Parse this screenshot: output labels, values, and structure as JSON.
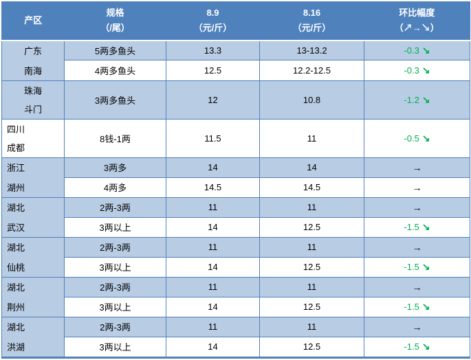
{
  "colors": {
    "header_bg": "#4f81bd",
    "row_blue": "#b8cce4",
    "row_white": "#ffffff",
    "border_blue": "#4f81bd",
    "header_text": "#ffffff",
    "body_text": "#000000",
    "down_green": "#00b050",
    "flat_black": "#000000"
  },
  "icons": {
    "up_arrow": "↗",
    "flat_arrow": "→",
    "down_arrow": "↘"
  },
  "header": {
    "region": "产区",
    "spec_line1": "规格",
    "spec_line2": "（/尾）",
    "date1_line1": "8.9",
    "date1_line2": "（元/斤）",
    "date2_line1": "8.16",
    "date2_line2": "（元/斤）",
    "change_line1": "环比幅度",
    "change_line2": "（↗→↘）"
  },
  "groups": [
    {
      "region_lines": [
        "广东",
        "南海"
      ],
      "region_align": "center",
      "region_bg": "blue",
      "tall": false,
      "rows": [
        {
          "spec": "5两多鱼头",
          "p1": "13.3",
          "p2": "13-13.2",
          "change": "-0.3",
          "trend": "down",
          "bg": "blue"
        },
        {
          "spec": "4两多鱼头",
          "p1": "12.5",
          "p2": "12.2-12.5",
          "change": "-0.3",
          "trend": "down",
          "bg": "white"
        }
      ]
    },
    {
      "region_lines": [
        "珠海",
        "斗门"
      ],
      "region_align": "center",
      "region_bg": "blue",
      "tall": true,
      "rows": [
        {
          "spec": "3两多鱼头",
          "p1": "12",
          "p2": "10.8",
          "change": "-1.2",
          "trend": "down",
          "bg": "blue"
        }
      ]
    },
    {
      "region_lines": [
        "四川",
        "成都"
      ],
      "region_align": "left",
      "region_bg": "white",
      "tall": true,
      "rows": [
        {
          "spec": "8钱-1两",
          "p1": "11.5",
          "p2": "11",
          "change": "-0.5",
          "trend": "down",
          "bg": "white"
        }
      ]
    },
    {
      "region_lines": [
        "浙江",
        "湖州"
      ],
      "region_align": "left",
      "region_bg": "blue",
      "tall": false,
      "rows": [
        {
          "spec": "3两多",
          "p1": "14",
          "p2": "14",
          "change": "",
          "trend": "flat",
          "bg": "blue"
        },
        {
          "spec": "4两多",
          "p1": "14.5",
          "p2": "14.5",
          "change": "",
          "trend": "flat",
          "bg": "white"
        }
      ]
    },
    {
      "region_lines": [
        "湖北",
        "武汉"
      ],
      "region_align": "left",
      "region_bg": "blue",
      "tall": false,
      "rows": [
        {
          "spec": "2两-3两",
          "p1": "11",
          "p2": "11",
          "change": "",
          "trend": "flat",
          "bg": "blue"
        },
        {
          "spec": "3两以上",
          "p1": "14",
          "p2": "12.5",
          "change": "-1.5",
          "trend": "down",
          "bg": "white"
        }
      ]
    },
    {
      "region_lines": [
        "湖北",
        "仙桃"
      ],
      "region_align": "left",
      "region_bg": "blue",
      "tall": false,
      "rows": [
        {
          "spec": "2两-3两",
          "p1": "11",
          "p2": "11",
          "change": "",
          "trend": "flat",
          "bg": "blue"
        },
        {
          "spec": "3两以上",
          "p1": "14",
          "p2": "12.5",
          "change": "-1.5",
          "trend": "down",
          "bg": "white"
        }
      ]
    },
    {
      "region_lines": [
        "湖北",
        "荆州"
      ],
      "region_align": "left",
      "region_bg": "blue",
      "tall": false,
      "rows": [
        {
          "spec": "2两-3两",
          "p1": "11",
          "p2": "11",
          "change": "",
          "trend": "flat",
          "bg": "blue"
        },
        {
          "spec": "3两以上",
          "p1": "14",
          "p2": "12.5",
          "change": "-1.5",
          "trend": "down",
          "bg": "white"
        }
      ]
    },
    {
      "region_lines": [
        "湖北",
        "洪湖"
      ],
      "region_align": "left",
      "region_bg": "blue",
      "tall": false,
      "rows": [
        {
          "spec": "2两-3两",
          "p1": "11",
          "p2": "11",
          "change": "",
          "trend": "flat",
          "bg": "blue"
        },
        {
          "spec": "3两以上",
          "p1": "14",
          "p2": "12.5",
          "change": "-1.5",
          "trend": "down",
          "bg": "white"
        }
      ]
    }
  ]
}
